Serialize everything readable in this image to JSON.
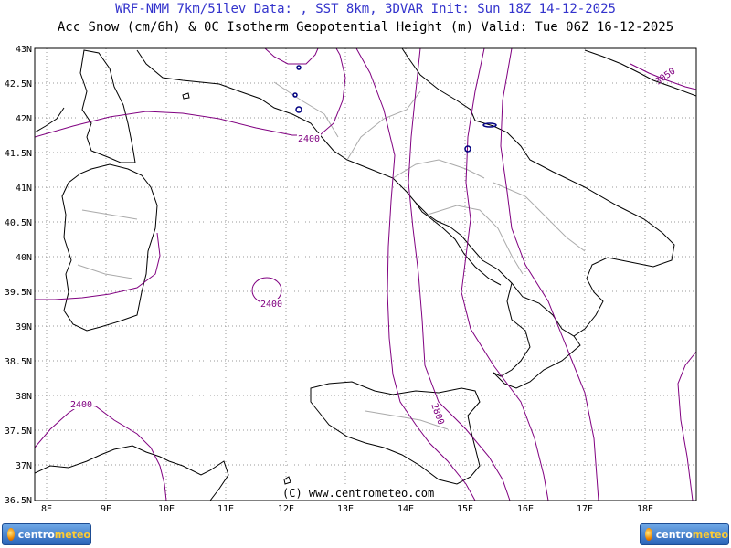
{
  "header": {
    "line1": "WRF-NMM 7km/51lev   Data: , SST 8km, 3DVAR   Init: Sun 18Z 14-12-2025",
    "line2": "Acc Snow (cm/6h) & 0C Isotherm Geopotential Height (m)  Valid: Tue 06Z 16-12-2025"
  },
  "map": {
    "lat_labels": [
      "43N",
      "42.5N",
      "42N",
      "41.5N",
      "41N",
      "40.5N",
      "40N",
      "39.5N",
      "39N",
      "38.5N",
      "38N",
      "37.5N",
      "37N",
      "36.5N"
    ],
    "lon_labels": [
      "8E",
      "9E",
      "10E",
      "11E",
      "12E",
      "13E",
      "14E",
      "15E",
      "16E",
      "17E",
      "18E"
    ],
    "contour_labels": [
      "2400",
      "2400",
      "2400",
      "2800",
      "3050"
    ],
    "contour_color": "#800080",
    "snow_color": "#000080"
  },
  "credit": "(C) www.centrometeo.com",
  "logos": {
    "left": {
      "word1": "centro",
      "word2": "meteo"
    },
    "right": {
      "word1": "centro",
      "word2": "meteo"
    }
  }
}
